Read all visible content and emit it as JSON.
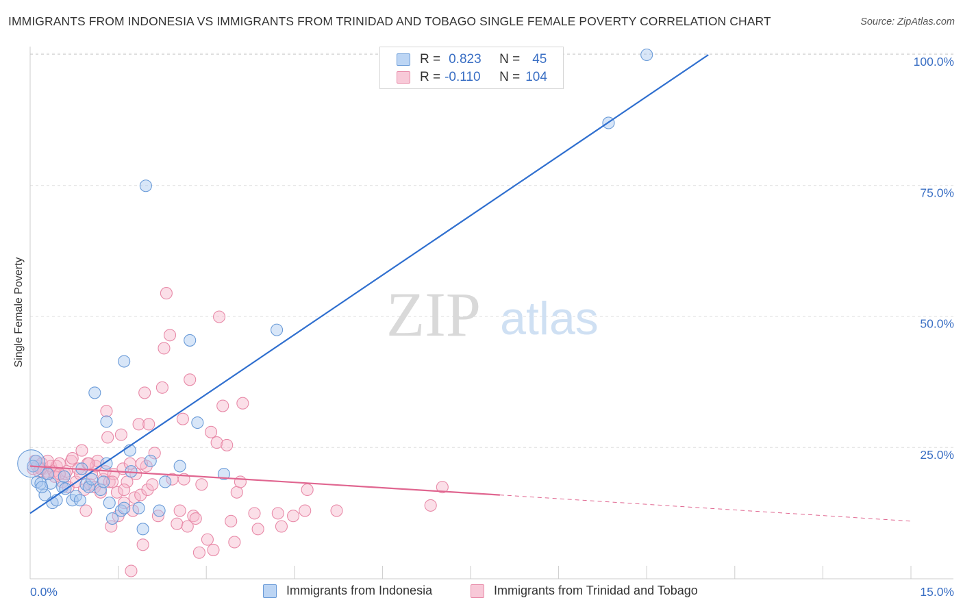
{
  "title": "IMMIGRANTS FROM INDONESIA VS IMMIGRANTS FROM TRINIDAD AND TOBAGO SINGLE FEMALE POVERTY CORRELATION CHART",
  "source": "Source: ZipAtlas.com",
  "watermark": {
    "zip": "ZIP",
    "atlas": "atlas"
  },
  "legend": {
    "rows": [
      {
        "r_label": "R =",
        "r_value": "0.823",
        "n_label": "N =",
        "n_value": "45"
      },
      {
        "r_label": "R =",
        "r_value": "-0.110",
        "n_label": "N =",
        "n_value": "104"
      }
    ]
  },
  "colors": {
    "blue_fill": "#a8c8f0",
    "blue_stroke": "#6a9bd8",
    "blue_line": "#2f6fcf",
    "pink_fill": "#f6b8cc",
    "pink_stroke": "#e88aa8",
    "pink_line": "#e06690",
    "grid": "#dddddd",
    "tick_label": "#3a6fc4"
  },
  "chart_data": {
    "type": "scatter",
    "ylabel": "Single Female Poverty",
    "xlim": [
      0,
      15
    ],
    "ylim": [
      0,
      100
    ],
    "x_tick_labels": [
      "0.0%",
      "15.0%"
    ],
    "y_ticks": [
      25,
      50,
      75,
      100
    ],
    "y_tick_labels": [
      "25.0%",
      "50.0%",
      "75.0%",
      "100.0%"
    ],
    "grid": true,
    "legend_position": "top-center",
    "series": [
      {
        "name": "Immigrants from Indonesia",
        "color": "#6a9bd8",
        "trend": {
          "x": [
            0,
            11.55
          ],
          "y": [
            12.5,
            100
          ],
          "dashed_to_end": false
        },
        "points": [
          [
            0.1,
            22.5
          ],
          [
            0.12,
            18.5
          ],
          [
            0.18,
            18.2
          ],
          [
            0.25,
            16.0
          ],
          [
            0.35,
            18.2
          ],
          [
            0.38,
            14.5
          ],
          [
            0.45,
            15.0
          ],
          [
            0.55,
            17.5
          ],
          [
            0.58,
            19.5
          ],
          [
            0.6,
            17.2
          ],
          [
            0.72,
            15.0
          ],
          [
            0.78,
            15.8
          ],
          [
            0.85,
            15.0
          ],
          [
            0.88,
            21.0
          ],
          [
            0.95,
            18.0
          ],
          [
            1.0,
            17.5
          ],
          [
            1.05,
            19.0
          ],
          [
            1.1,
            35.5
          ],
          [
            1.2,
            17.0
          ],
          [
            1.25,
            18.5
          ],
          [
            1.3,
            22.0
          ],
          [
            1.3,
            30.0
          ],
          [
            1.35,
            14.5
          ],
          [
            1.4,
            11.5
          ],
          [
            1.55,
            13.0
          ],
          [
            1.6,
            13.5
          ],
          [
            1.6,
            41.5
          ],
          [
            1.7,
            24.5
          ],
          [
            1.72,
            20.5
          ],
          [
            1.85,
            13.5
          ],
          [
            1.92,
            9.5
          ],
          [
            1.97,
            75.0
          ],
          [
            2.05,
            22.5
          ],
          [
            2.2,
            13.0
          ],
          [
            2.3,
            18.5
          ],
          [
            2.55,
            21.5
          ],
          [
            2.72,
            45.5
          ],
          [
            2.85,
            29.8
          ],
          [
            3.3,
            20.0
          ],
          [
            4.2,
            47.5
          ],
          [
            9.85,
            87.0
          ],
          [
            10.5,
            100.0
          ],
          [
            0.05,
            21.5
          ],
          [
            0.2,
            17.5
          ],
          [
            0.3,
            20.0
          ]
        ]
      },
      {
        "name": "Immigrants from Trinidad and Tobago",
        "color": "#e88aa8",
        "trend": {
          "x": [
            0,
            8.0
          ],
          "y": [
            21.5,
            16.0
          ],
          "dashed_to_end": true,
          "dashed_end": [
            15.0,
            11.0
          ]
        },
        "points": [
          [
            0.05,
            21.0
          ],
          [
            0.08,
            22.5
          ],
          [
            0.12,
            21.5
          ],
          [
            0.15,
            20.5
          ],
          [
            0.2,
            22.0
          ],
          [
            0.22,
            21.0
          ],
          [
            0.28,
            20.5
          ],
          [
            0.32,
            20.0
          ],
          [
            0.35,
            21.5
          ],
          [
            0.4,
            20.5
          ],
          [
            0.45,
            21.5
          ],
          [
            0.5,
            22.0
          ],
          [
            0.55,
            18.5
          ],
          [
            0.6,
            20.0
          ],
          [
            0.65,
            17.5
          ],
          [
            0.7,
            22.5
          ],
          [
            0.72,
            23.0
          ],
          [
            0.78,
            18.5
          ],
          [
            0.82,
            21.0
          ],
          [
            0.88,
            24.5
          ],
          [
            0.92,
            17.0
          ],
          [
            0.95,
            13.0
          ],
          [
            0.98,
            22.0
          ],
          [
            1.02,
            18.0
          ],
          [
            1.05,
            20.0
          ],
          [
            1.1,
            17.5
          ],
          [
            1.12,
            21.5
          ],
          [
            1.15,
            22.5
          ],
          [
            1.2,
            16.5
          ],
          [
            1.25,
            19.0
          ],
          [
            1.28,
            20.5
          ],
          [
            1.3,
            32.0
          ],
          [
            1.32,
            27.0
          ],
          [
            1.35,
            18.5
          ],
          [
            1.38,
            10.0
          ],
          [
            1.42,
            20.0
          ],
          [
            1.48,
            16.5
          ],
          [
            1.5,
            12.0
          ],
          [
            1.55,
            27.5
          ],
          [
            1.58,
            21.0
          ],
          [
            1.6,
            14.5
          ],
          [
            1.65,
            18.5
          ],
          [
            1.7,
            22.0
          ],
          [
            1.75,
            13.0
          ],
          [
            1.78,
            15.5
          ],
          [
            1.8,
            20.0
          ],
          [
            1.85,
            29.5
          ],
          [
            1.88,
            16.0
          ],
          [
            1.92,
            6.5
          ],
          [
            1.95,
            35.5
          ],
          [
            1.98,
            21.5
          ],
          [
            2.0,
            17.0
          ],
          [
            2.02,
            29.5
          ],
          [
            2.08,
            18.0
          ],
          [
            2.12,
            24.0
          ],
          [
            2.18,
            12.0
          ],
          [
            2.25,
            36.5
          ],
          [
            2.28,
            44.0
          ],
          [
            2.32,
            54.5
          ],
          [
            2.38,
            46.5
          ],
          [
            2.42,
            19.0
          ],
          [
            2.5,
            10.5
          ],
          [
            2.55,
            13.0
          ],
          [
            2.6,
            30.5
          ],
          [
            2.62,
            19.0
          ],
          [
            2.68,
            10.0
          ],
          [
            2.72,
            38.0
          ],
          [
            2.78,
            12.0
          ],
          [
            2.82,
            11.5
          ],
          [
            2.88,
            5.0
          ],
          [
            2.92,
            18.0
          ],
          [
            3.02,
            7.5
          ],
          [
            3.08,
            28.0
          ],
          [
            3.12,
            5.5
          ],
          [
            3.18,
            26.0
          ],
          [
            3.22,
            50.0
          ],
          [
            3.28,
            33.0
          ],
          [
            3.35,
            25.5
          ],
          [
            3.42,
            11.0
          ],
          [
            3.48,
            7.0
          ],
          [
            3.52,
            16.5
          ],
          [
            3.58,
            18.5
          ],
          [
            3.62,
            33.5
          ],
          [
            3.82,
            12.5
          ],
          [
            3.88,
            9.5
          ],
          [
            4.22,
            12.5
          ],
          [
            4.28,
            10.0
          ],
          [
            4.48,
            12.0
          ],
          [
            4.68,
            13.0
          ],
          [
            4.72,
            17.0
          ],
          [
            5.22,
            13.0
          ],
          [
            6.82,
            14.0
          ],
          [
            7.02,
            17.5
          ],
          [
            1.72,
            1.5
          ],
          [
            0.18,
            21.0
          ],
          [
            0.42,
            19.5
          ],
          [
            0.62,
            20.5
          ],
          [
            0.85,
            20.0
          ],
          [
            1.0,
            22.0
          ],
          [
            1.4,
            18.5
          ],
          [
            1.6,
            17.0
          ],
          [
            1.9,
            22.0
          ],
          [
            0.3,
            22.5
          ],
          [
            0.5,
            20.0
          ]
        ]
      }
    ]
  }
}
